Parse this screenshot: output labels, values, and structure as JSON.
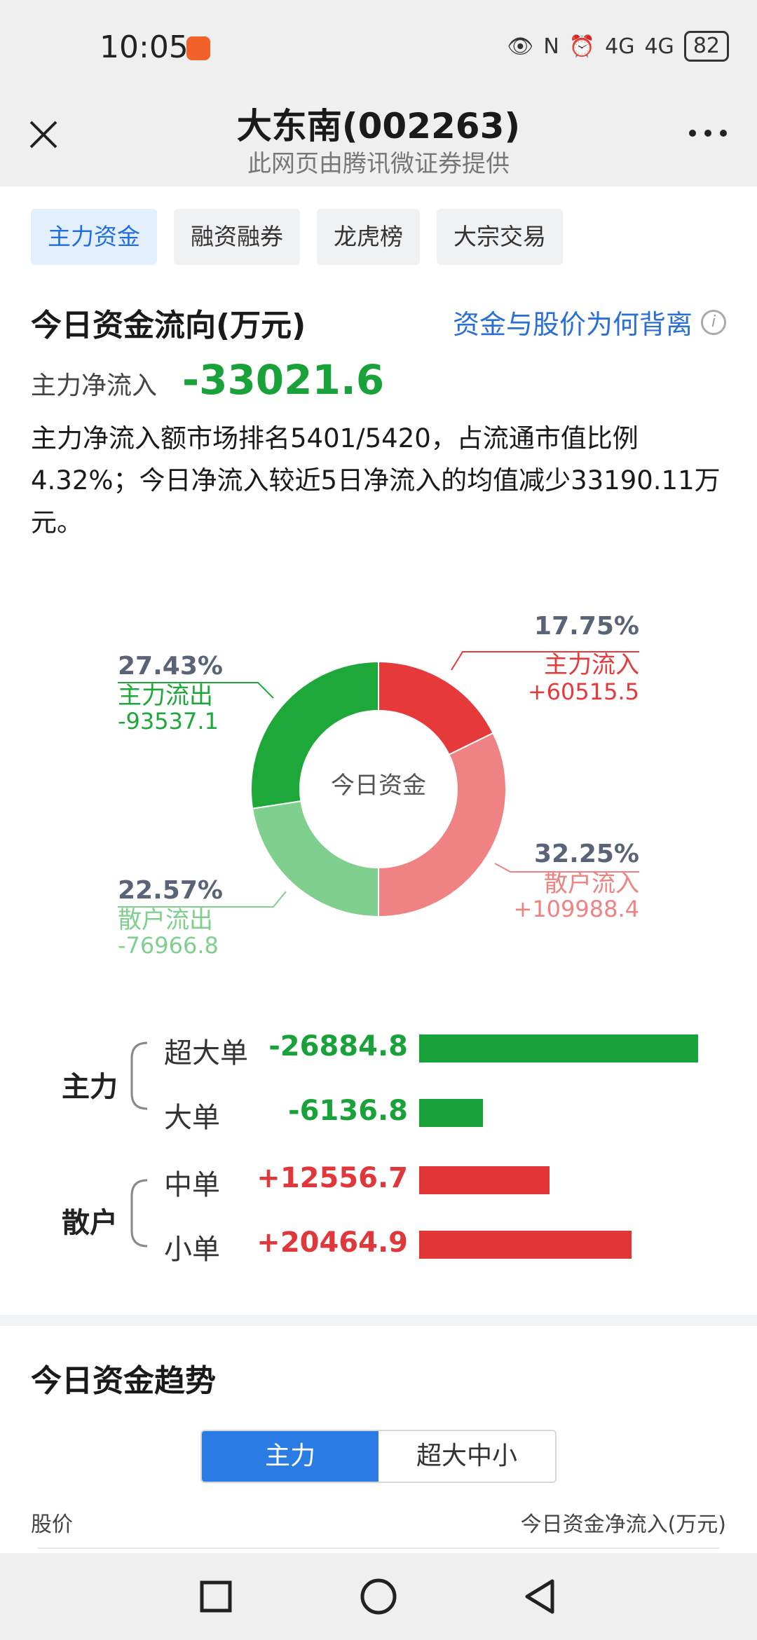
{
  "status": {
    "time": "10:05",
    "network1": "4G",
    "network2": "4G",
    "battery": "82"
  },
  "nav": {
    "title": "大东南(002263)",
    "subtitle": "此网页由腾讯微证券提供"
  },
  "tabs": [
    {
      "label": "主力资金",
      "active": true
    },
    {
      "label": "融资融券",
      "active": false
    },
    {
      "label": "龙虎榜",
      "active": false
    },
    {
      "label": "大宗交易",
      "active": false
    }
  ],
  "flow": {
    "title": "今日资金流向(万元)",
    "why_link": "资金与股价为何背离",
    "net_label": "主力净流入",
    "net_value": "-33021.6",
    "description": "主力净流入额市场排名5401/5420，占流通市值比例4.32%；今日净流入较近5日净流入的均值减少33190.11万元。"
  },
  "chart_data": {
    "type": "pie",
    "center_label": "今日资金",
    "slices": [
      {
        "label": "主力流入",
        "percent": "17.75%",
        "value": "+60515.5",
        "fraction": 0.1775,
        "color": "#e63a3a"
      },
      {
        "label": "散户流入",
        "percent": "32.25%",
        "value": "+109988.4",
        "fraction": 0.3225,
        "color": "#ef8282"
      },
      {
        "label": "散户流出",
        "percent": "22.57%",
        "value": "-76966.8",
        "fraction": 0.2257,
        "color": "#7fd08e"
      },
      {
        "label": "主力流出",
        "percent": "27.43%",
        "value": "-93537.1",
        "fraction": 0.2743,
        "color": "#1ea83a"
      }
    ]
  },
  "breakdown": {
    "groups": [
      {
        "label": "主力",
        "rows": [
          {
            "label": "超大单",
            "value": "-26884.8",
            "amount": -26884.8
          },
          {
            "label": "大单",
            "value": "-6136.8",
            "amount": -6136.8
          }
        ]
      },
      {
        "label": "散户",
        "rows": [
          {
            "label": "中单",
            "value": "+12556.7",
            "amount": 12556.7
          },
          {
            "label": "小单",
            "value": "+20464.9",
            "amount": 20464.9
          }
        ]
      }
    ]
  },
  "trend": {
    "title": "今日资金趋势",
    "segments": [
      {
        "label": "主力",
        "active": true
      },
      {
        "label": "超大中小",
        "active": false
      }
    ],
    "left_axis_label": "股价",
    "right_axis_label": "今日资金净流入(万元)"
  }
}
